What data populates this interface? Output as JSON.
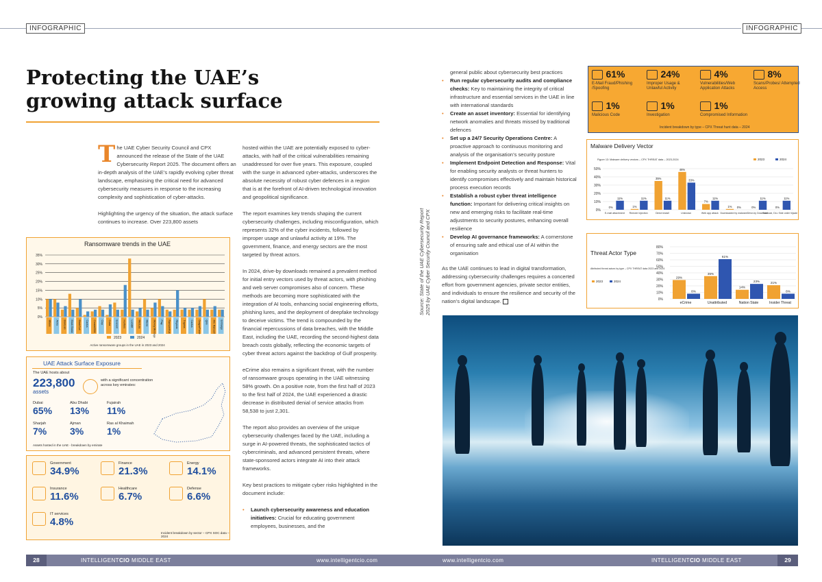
{
  "header": {
    "tag_left": "INFOGRAPHIC",
    "tag_right": "INFOGRAPHIC"
  },
  "article": {
    "title": "Protecting the UAE’s growing attack surface",
    "col1_dropcap": "T",
    "col1_p1": "he UAE Cyber Security Council and CPX announced the release of the State of the UAE Cybersecurity Report 2025. The document offers an in-depth analysis of the UAE’s rapidly evolving cyber threat landscape, emphasising the critical need for advanced cybersecurity measures in response to the increasing complexity and sophistication of cyber-attacks.",
    "col1_p2": "Highlighting the urgency of the situation, the attack surface continues to increase. Over 223,800 assets",
    "col2_p1": "hosted within the UAE are potentially exposed to cyber-attacks, with half of the critical vulnerabilities remaining unaddressed for over five years. This exposure, coupled with the surge in advanced cyber-attacks, underscores the absolute necessity of robust cyber defences in a region that is at the forefront of AI-driven technological innovation and geopolitical significance.",
    "col2_p2": "The report examines key trends shaping the current cybersecurity challenges, including misconfiguration, which represents 32% of the cyber incidents, followed by improper usage and unlawful activity at 19%. The government, finance, and energy sectors are the most targeted by threat actors.",
    "col2_p3": "In 2024, drive-by downloads remained a prevalent method for initial entry vectors used by threat actors, with phishing and web server compromises also of concern. These methods are becoming more sophisticated with the integration of AI tools, enhancing social engineering efforts, phishing lures, and the deployment of deepfake technology to deceive victims. The trend is compounded by the financial repercussions of data breaches, with the Middle East, including the UAE, recording the second-highest data breach costs globally, reflecting the economic targets of cyber threat actors against the backdrop of Gulf prosperity.",
    "col2_p4": "eCrime also remains a significant threat, with the number of ransomware groups operating in the UAE witnessing 58% growth. On a positive note, from the first half of 2023 to the first half of 2024, the UAE experienced a drastic decrease in distributed denial of service attacks from 58,538 to just 2,301.",
    "col2_p5": "The report also provides an overview of the unique cybersecurity challenges faced by the UAE, including a surge in AI-powered threats, the sophisticated tactics of cybercriminals, and advanced persistent threats, where state-sponsored actors integrate AI into their attack frameworks.",
    "col2_p6": "Key best practices to mitigate cyber risks highlighted in the document include:",
    "col2_b1_title": "Launch cybersecurity awareness and education initiatives:",
    "col2_b1_text": "Crucial for educating government employees, businesses, and the",
    "col3_p0": "general public about cybersecurity best practices",
    "bullets": [
      {
        "title": "Run regular cybersecurity audits and compliance checks:",
        "text": "Key to maintaining the integrity of critical infrastructure and essential services in the UAE in line with international standards"
      },
      {
        "title": "Create an asset inventory:",
        "text": "Essential for identifying network anomalies and threats missed by traditional defences"
      },
      {
        "title": "Set up a 24/7 Security Operations Centre:",
        "text": "A proactive approach to continuous monitoring and analysis of the organisation’s security posture"
      },
      {
        "title": "Implement Endpoint Detection and Response:",
        "text": "Vital for enabling security analysts or threat hunters to identify compromises effectively and maintain historical process execution records"
      },
      {
        "title": "Establish a robust cyber threat intelligence function:",
        "text": "Important for delivering critical insights on new and emerging risks to facilitate real-time adjustments to security postures, enhancing overall resilience"
      },
      {
        "title": "Develop AI governance frameworks:",
        "text": "A cornerstone of ensuring safe and ethical use of AI within the organisation"
      }
    ],
    "col3_end": "As the UAE continues to lead in digital transformation, addressing cybersecurity challenges requires a concerted effort from government agencies, private sector entities, and individuals to ensure the resilience and security of the nation’s digital landscape.",
    "source": "Source: State of the UAE Cybersecurity Report 2025 by UAE Cyber Security Council and CPX"
  },
  "incident_types": {
    "items": [
      {
        "value": "61%",
        "label": "E-Mail Fraud/Phishing /Spoofing"
      },
      {
        "value": "24%",
        "label": "Improper Usage & Unlawful Activity"
      },
      {
        "value": "4%",
        "label": "Vulnerabilities/Web Application Attacks"
      },
      {
        "value": "8%",
        "label": "Scans/Probes/ Attempted Access"
      },
      {
        "value": "1%",
        "label": "Malicious Code"
      },
      {
        "value": "1%",
        "label": "Investigation"
      },
      {
        "value": "1%",
        "label": "Compromised Information"
      }
    ],
    "caption": "Incident breakdown by type – CPX Threat hunt data – 2024"
  },
  "attack_surface": {
    "title": "UAE Attack Surface Exposure",
    "hosts_label": "The UAE hosts about",
    "assets_value": "223,800",
    "assets_unit": "assets",
    "assets_desc": "with a significant concentration across key emirates:",
    "emirates": [
      {
        "name": "Dubai",
        "value": "65%"
      },
      {
        "name": "Abu Dhabi",
        "value": "13%"
      },
      {
        "name": "Fujairah",
        "value": "11%"
      },
      {
        "name": "Sharjah",
        "value": "7%"
      },
      {
        "name": "Ajman",
        "value": "3%"
      },
      {
        "name": "Ras al Khaimah",
        "value": "1%"
      }
    ],
    "caption": "Assets hosted in the UAE - breakdown by emirate"
  },
  "sectors": {
    "items": [
      {
        "name": "Government",
        "value": "34.9%"
      },
      {
        "name": "Finance",
        "value": "21.3%"
      },
      {
        "name": "Energy",
        "value": "14.1%"
      },
      {
        "name": "Insurance",
        "value": "11.6%"
      },
      {
        "name": "Healthcare",
        "value": "6.7%"
      },
      {
        "name": "Defense",
        "value": "6.6%"
      },
      {
        "name": "IT services",
        "value": "4.8%"
      }
    ],
    "caption": "Incident breakdown by sector – CPX SOC data – 2024"
  },
  "footer": {
    "left_page": "28",
    "left_brand_a": "INTELLIGENT",
    "left_brand_b": "CIO",
    "left_brand_c": " MIDDLE EAST",
    "left_url": "www.intelligentcio.com",
    "right_url": "www.intelligentcio.com",
    "right_brand_a": "INTELLIGENT",
    "right_brand_b": "CIO",
    "right_brand_c": " MIDDLE EAST",
    "right_page": "29"
  },
  "colors": {
    "c2023": "#f0a232",
    "c2024": "#4a90c8",
    "c2024b": "#2f56b0"
  },
  "chart_data": [
    {
      "type": "bar",
      "title": "Ransomware trends in the UAE",
      "caption": "Active ransomware groups in the UAE in 2023 and 2024",
      "ylim": [
        0,
        35
      ],
      "yticks": [
        "0%",
        "5%",
        "10%",
        "15%",
        "20%",
        "25%",
        "30%",
        "35%"
      ],
      "categories": [
        "8Base",
        "Akira",
        "BianLian",
        "Black Basta",
        "BlackSuit",
        "Cactus",
        "Cicada3301",
        "Clop",
        "Cuba",
        "Everest",
        "Hunters",
        "LockBit",
        "Medusa",
        "Meow",
        "Money Message",
        "Play",
        "RansomHub",
        "Rhysida",
        "Trigona",
        "Cactus",
        "DragonForce",
        "Qilin",
        "INC Ransom",
        "Embargo"
      ],
      "series": [
        {
          "name": "2023",
          "values": [
            10,
            10,
            4,
            13,
            5,
            1,
            3,
            6,
            1,
            8,
            4,
            33,
            3,
            10,
            5,
            10,
            4,
            4,
            4,
            4,
            4,
            10,
            4,
            4
          ]
        },
        {
          "name": "2024",
          "values": [
            10,
            8,
            6,
            4,
            10,
            3,
            4,
            4,
            7,
            4,
            18,
            4,
            5,
            4,
            8,
            6,
            3,
            15,
            5,
            5,
            6,
            4,
            6,
            4
          ]
        }
      ]
    },
    {
      "type": "bar",
      "title": "Malware Delivery Vector",
      "subtitle": "Figure 13: Malware delivery vectors – CPX THREAT data – 2023-2024",
      "ylim": [
        0,
        50
      ],
      "yticks": [
        "0%",
        "10%",
        "20%",
        "30%",
        "40%",
        "50%"
      ],
      "categories": [
        "E-mail attachment",
        "Remote Injection",
        "Direct install",
        "Unknown",
        "Web app attack",
        "Downloaded by malware",
        "Drive-by Download",
        "Sideload, DLL Side order hijacking"
      ],
      "series": [
        {
          "name": "2023",
          "values": [
            0,
            1,
            35,
            46,
            7,
            1,
            0,
            0
          ],
          "labels": [
            "0%",
            "1%",
            "35%",
            "46%",
            "7%",
            "1%",
            "0%",
            "0%"
          ]
        },
        {
          "name": "2024",
          "values": [
            11,
            11,
            11,
            33,
            11,
            0,
            11,
            11
          ],
          "labels": [
            "11%",
            "11%",
            "11%",
            "33%",
            "11%",
            "0%",
            "11%",
            "11%"
          ]
        }
      ]
    },
    {
      "type": "bar",
      "title": "Threat Actor Type",
      "subtitle": "Attributed threat actors by type – CPX THREAT data 2023 and 2024",
      "ylim": [
        0,
        80
      ],
      "yticks": [
        "0%",
        "10%",
        "20%",
        "30%",
        "40%",
        "50%",
        "60%",
        "70%",
        "80%"
      ],
      "categories": [
        "eCrime",
        "Unattributed",
        "Nation State",
        "Insider Threat"
      ],
      "series": [
        {
          "name": "2023",
          "values": [
            29,
            35,
            14,
            21
          ],
          "labels": [
            "29%",
            "35%",
            "14%",
            "21%"
          ]
        },
        {
          "name": "2024",
          "values": [
            8,
            61,
            23,
            8
          ],
          "labels": [
            "8%",
            "61%",
            "23%",
            "8%"
          ]
        }
      ]
    }
  ]
}
